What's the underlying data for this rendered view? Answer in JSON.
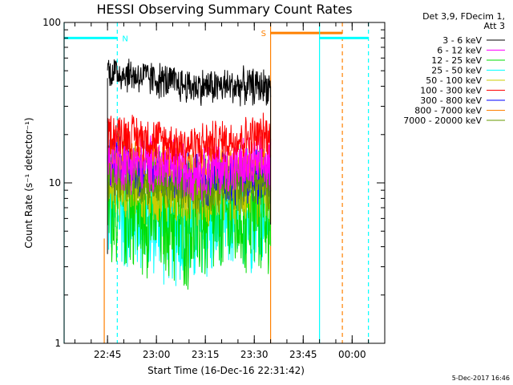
{
  "chart_data": {
    "type": "line",
    "title": "HESSI Observing Summary Count Rates",
    "xlabel": "Start Time (16-Dec-16 22:31:42)",
    "ylabel": "Count Rate (s⁻¹ detector⁻¹)",
    "y_scale": "log",
    "ylim": [
      1,
      100
    ],
    "y_tick_labels": [
      "1",
      "10",
      "100"
    ],
    "x_range_minutes": [
      "22:31:42",
      "00:10:00"
    ],
    "x_tick_labels": [
      "22:45",
      "23:00",
      "23:15",
      "23:30",
      "23:45",
      "00:00"
    ],
    "data_interval": [
      "22:45:00",
      "23:35:00"
    ],
    "legend_header": [
      "Det 3,9, FDecim 1,",
      "Att 3"
    ],
    "legend_position": "right",
    "series": [
      {
        "name": "3 - 6 keV",
        "color": "#000000",
        "level_start": 50,
        "level_mid": 40,
        "level_end": 40,
        "noise": 0.05
      },
      {
        "name": "6 - 12 keV",
        "color": "#ff00ff",
        "level_start": 14,
        "level_mid": 12,
        "level_end": 13,
        "noise": 0.08
      },
      {
        "name": "12 - 25 keV",
        "color": "#00dd00",
        "level_start": 8,
        "level_mid": 5.5,
        "level_end": 7,
        "noise": 0.18
      },
      {
        "name": "25 - 50 keV",
        "color": "#00ffff",
        "level_start": 7,
        "level_mid": 5,
        "level_end": 7,
        "noise": 0.16
      },
      {
        "name": "50 - 100 keV",
        "color": "#cccc00",
        "level_start": 10,
        "level_mid": 9,
        "level_end": 9.5,
        "noise": 0.1
      },
      {
        "name": "100 - 300 keV",
        "color": "#ff0000",
        "level_start": 21,
        "level_mid": 17,
        "level_end": 20,
        "noise": 0.06
      },
      {
        "name": "300 - 800 keV",
        "color": "#0000ff",
        "level_start": 13,
        "level_mid": 11,
        "level_end": 11,
        "noise": 0.08
      },
      {
        "name": "800 - 7000 keV",
        "color": "#ff8000",
        "level_start": 15,
        "level_mid": 13,
        "level_end": 13,
        "noise": 0.05
      },
      {
        "name": "7000 - 20000 keV",
        "color": "#669900",
        "level_start": 11,
        "level_mid": 9,
        "level_end": 10,
        "noise": 0.07
      }
    ],
    "annotations": [
      {
        "label": "N",
        "color": "#00ffff",
        "bar": [
          "22:31:42",
          "22:48:00"
        ],
        "bar_level": 80,
        "lines": [
          {
            "time": "22:31:42",
            "style": "solid"
          },
          {
            "time": "22:48:00",
            "style": "dashed"
          }
        ]
      },
      {
        "label": "S",
        "color": "#ff8000",
        "bar": [
          "23:35:00",
          "23:57:00"
        ],
        "bar_level": 86,
        "lines": [
          {
            "time": "23:35:00",
            "style": "solid"
          },
          {
            "time": "23:57:00",
            "style": "dashed"
          }
        ]
      },
      {
        "label": "",
        "color": "#00ffff",
        "bar": [
          "23:50:00",
          "00:05:00"
        ],
        "bar_level": 80,
        "lines": [
          {
            "time": "23:50:00",
            "style": "solid"
          },
          {
            "time": "00:05:00",
            "style": "dashed"
          }
        ]
      }
    ],
    "extra_vertical_lines": [
      {
        "time": "22:44:00",
        "color": "#ff8000",
        "style": "solid"
      }
    ],
    "timestamp": "5-Dec-2017 16:46"
  }
}
